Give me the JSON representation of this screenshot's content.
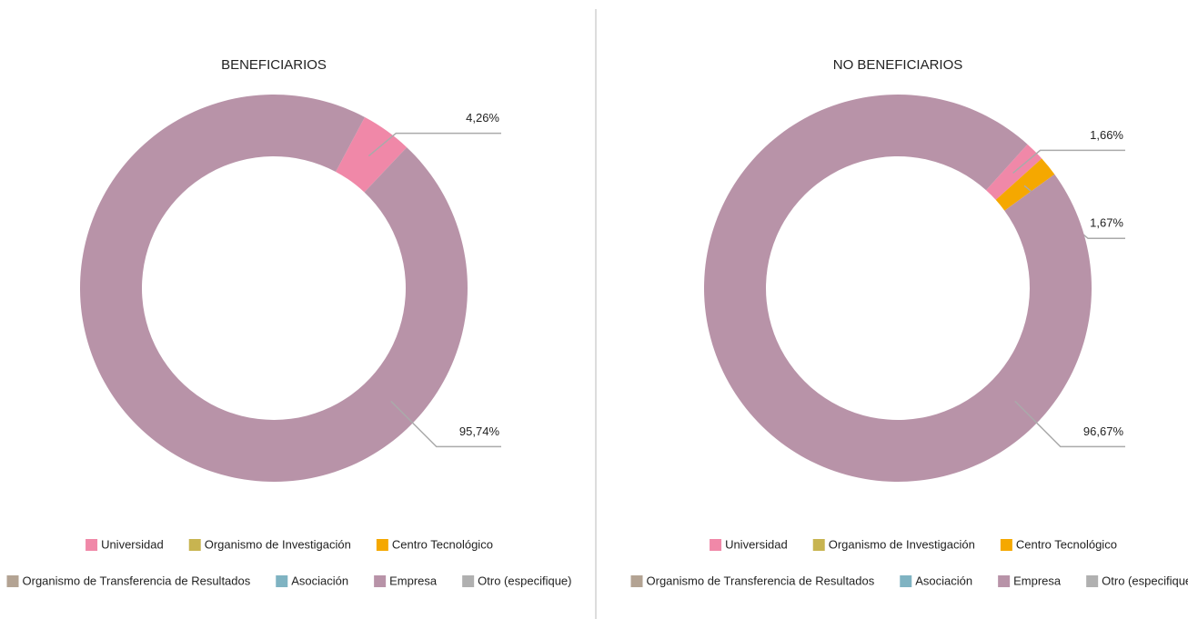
{
  "chart_data": [
    {
      "type": "donut",
      "title": "BENEFICIARIOS",
      "categories": [
        "Universidad",
        "Organismo de Investigación",
        "Centro Tecnológico",
        "Organismo de Transferencia de Resultados",
        "Asociación",
        "Empresa",
        "Otro (especifique)"
      ],
      "values": [
        4.26,
        0,
        0,
        0,
        0,
        95.74,
        0
      ],
      "value_labels": [
        "4,26%",
        null,
        null,
        null,
        null,
        "95,74%",
        null
      ],
      "colors": [
        "#f088a8",
        "#c8b450",
        "#f5a800",
        "#b3a393",
        "#7fb3c2",
        "#b893a8",
        "#b0b0b0"
      ]
    },
    {
      "type": "donut",
      "title": "NO BENEFICIARIOS",
      "categories": [
        "Universidad",
        "Organismo de Investigación",
        "Centro Tecnológico",
        "Organismo de Transferencia de Resultados",
        "Asociación",
        "Empresa",
        "Otro (especifique)"
      ],
      "values": [
        1.66,
        0,
        1.67,
        0,
        0,
        96.67,
        0
      ],
      "value_labels": [
        "1,66%",
        null,
        "1,67%",
        null,
        null,
        "96,67%",
        null
      ],
      "colors": [
        "#f088a8",
        "#c8b450",
        "#f5a800",
        "#b3a393",
        "#7fb3c2",
        "#b893a8",
        "#b0b0b0"
      ]
    }
  ]
}
